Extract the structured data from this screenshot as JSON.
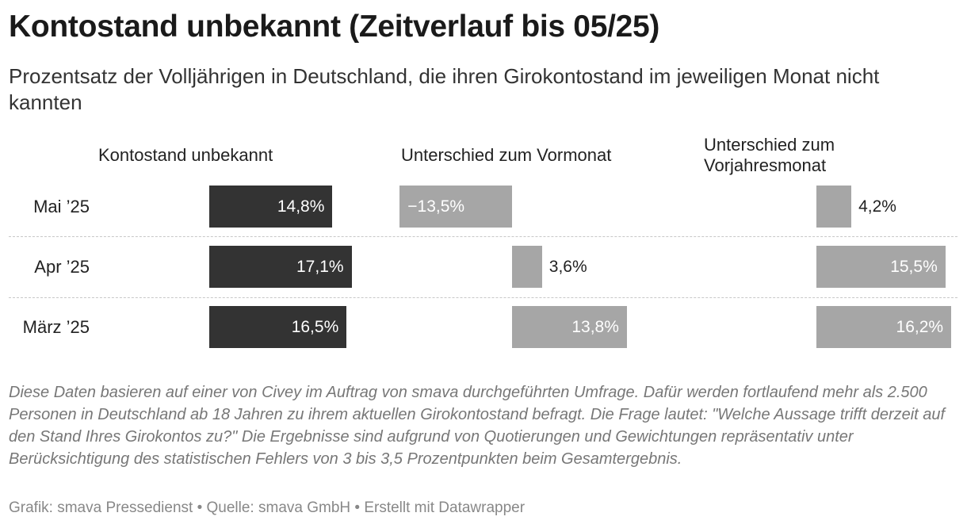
{
  "title": "Kontostand unbekannt (Zeitverlauf bis 05/25)",
  "subtitle": "Prozentsatz der Volljährigen in Deutschland, die ihren Girokontostand im jeweiligen Monat nicht kannten",
  "notes": "Diese Daten basieren auf einer von Civey im Auftrag von smava durchgeführten Umfrage. Dafür werden fortlaufend mehr als 2.500 Personen in Deutschland ab 18 Jahren zu ihrem aktuellen Girokontostand befragt. Die Frage lautet: \"Welche Aussage trifft derzeit auf den Stand Ihres Girokontos zu?\" Die Ergebnisse sind aufgrund von Quotierungen und Gewichtungen repräsentativ unter Berücksichtigung des statistischen Fehlers von 3 bis 3,5 Prozentpunkten beim Gesamtergebnis.",
  "source": "Grafik: smava Pressedienst • Quelle: smava GmbH • Erstellt mit Datawrapper",
  "colors": {
    "dark_bar": "#333333",
    "light_bar": "#a6a6a6"
  },
  "chart_data": {
    "type": "bar",
    "categories": [
      "Mai ’25",
      "Apr ’25",
      "März ’25"
    ],
    "series": [
      {
        "name": "Kontostand unbekannt",
        "values": [
          14.8,
          17.1,
          16.5
        ],
        "labels": [
          "14,8%",
          "17,1%",
          "16,5%"
        ]
      },
      {
        "name": "Unterschied zum Vormonat",
        "values": [
          -13.5,
          3.6,
          13.8
        ],
        "labels": [
          "−13,5%",
          "3,6%",
          "13,8%"
        ]
      },
      {
        "name": "Unterschied zum Vorjahresmonat",
        "values": [
          4.2,
          15.5,
          16.2
        ],
        "labels": [
          "4,2%",
          "15,5%",
          "16,2%"
        ]
      }
    ]
  }
}
